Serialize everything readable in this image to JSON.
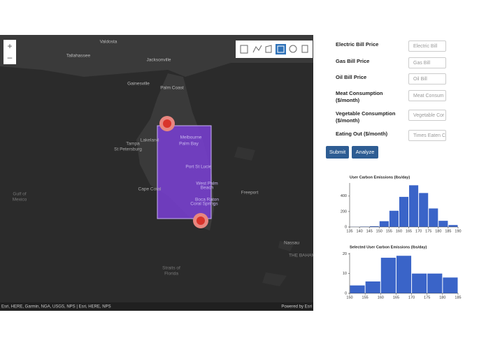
{
  "map": {
    "labels": [
      "Valdosta",
      "Tallahassee",
      "Jacksonville",
      "Gainesville",
      "Palm Coast",
      "Melbourne",
      "Palm Bay",
      "Lakeland",
      "Tampa",
      "St Petersburg",
      "Port St Lucie",
      "West Palm",
      "Beach",
      "Cape Coral",
      "Boca Raton",
      "Coral Springs",
      "Gulf of",
      "Mexico",
      "Freeport",
      "Nassau",
      "THE BAHAM",
      "Straits of",
      "Florida"
    ],
    "attribution": "Esri, HERE, Garmin, NGA, USGS, NPS | Esri, HERE, NPS",
    "powered_by": "Powered by Esri",
    "zoom_in": "+",
    "zoom_out": "–"
  },
  "form": {
    "fields": [
      {
        "label": "Electric Bill Price",
        "placeholder": "Electric Bill"
      },
      {
        "label": "Gas Bill Price",
        "placeholder": "Gas Bill"
      },
      {
        "label": "Oil Bill Price",
        "placeholder": "Oil Bill"
      },
      {
        "label": "Meat Consumption ($/month)",
        "placeholder": "Meat Consum"
      },
      {
        "label": "Vegetable Consumption ($/month)",
        "placeholder": "Vegetable Cor"
      },
      {
        "label": "Eating Out ($/month)",
        "placeholder": "Times Eaten C"
      }
    ],
    "buttons": [
      "Submit",
      "Analyze"
    ]
  },
  "charts": [
    {
      "type": "histogram",
      "title": "User Carbon Emissions (lbs/day)",
      "color": "#3a64c8",
      "bins": [
        135,
        140,
        145,
        150,
        155,
        160,
        165,
        170,
        175,
        180,
        185,
        190
      ],
      "values": [
        2,
        5,
        10,
        75,
        210,
        390,
        540,
        440,
        240,
        80,
        25
      ],
      "xlim": [
        135,
        190
      ],
      "xticks": [
        135,
        140,
        145,
        150,
        155,
        160,
        165,
        170,
        175,
        180,
        185,
        190
      ],
      "ylim": [
        0,
        570
      ],
      "yticks": [
        0,
        200,
        400
      ]
    },
    {
      "type": "histogram",
      "title": "Selected User Carbon Emissions (lbs/day)",
      "color": "#3a64c8",
      "bins": [
        150,
        155,
        160,
        165,
        170,
        175,
        180,
        185
      ],
      "values": [
        4,
        6,
        18,
        19,
        10,
        10,
        8
      ],
      "xlim": [
        150,
        185
      ],
      "xticks": [
        150,
        155,
        160,
        165,
        170,
        175,
        180,
        185
      ],
      "ylim": [
        0,
        20.5
      ],
      "yticks": [
        0,
        10,
        20
      ]
    }
  ]
}
